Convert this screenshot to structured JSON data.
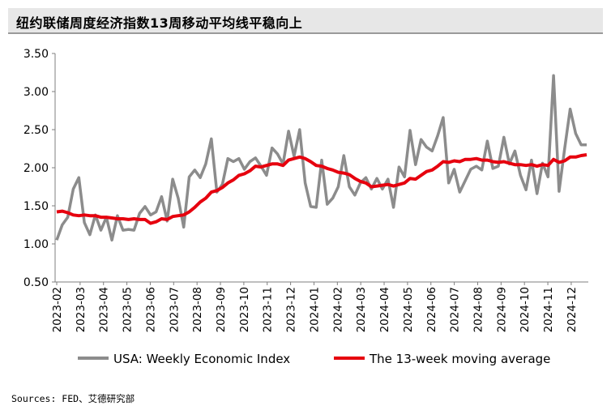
{
  "header": {
    "title": "纽约联储周度经济指数13周移动平均线平稳向上"
  },
  "footer": {
    "source": "Sources: FED、艾德研究部"
  },
  "colors": {
    "index_line": "#8c8c8c",
    "ma_line": "#e6000e",
    "title_bg": "#e7e7e7"
  },
  "chart_data": {
    "type": "line",
    "ylim": [
      0.5,
      3.5
    ],
    "yticks": [
      0.5,
      1.0,
      1.5,
      2.0,
      2.5,
      3.0,
      3.5
    ],
    "ytick_labels": [
      "0.50",
      "1.00",
      "1.50",
      "2.00",
      "2.50",
      "3.00",
      "3.50"
    ],
    "xtick_labels": [
      "2023-02",
      "2023-03",
      "2023-04",
      "2023-05",
      "2023-06",
      "2023-07",
      "2023-08",
      "2023-09",
      "2023-10",
      "2023-11",
      "2023-12",
      "2024-01",
      "2024-02",
      "2024-03",
      "2024-04",
      "2024-05",
      "2024-06",
      "2024-07",
      "2024-08",
      "2024-09",
      "2024-10",
      "2024-11",
      "2024-12"
    ],
    "legend_position": "bottom",
    "grid": false,
    "series": [
      {
        "name": "USA: Weekly Economic Index",
        "color": "#8c8c8c",
        "values": [
          1.05,
          1.25,
          1.35,
          1.72,
          1.87,
          1.28,
          1.12,
          1.38,
          1.18,
          1.35,
          1.05,
          1.37,
          1.18,
          1.19,
          1.18,
          1.4,
          1.49,
          1.38,
          1.42,
          1.62,
          1.3,
          1.85,
          1.6,
          1.22,
          1.88,
          1.97,
          1.87,
          2.05,
          2.38,
          1.68,
          1.78,
          2.12,
          2.08,
          2.12,
          1.98,
          2.08,
          2.13,
          2.02,
          1.9,
          2.26,
          2.18,
          2.05,
          2.48,
          2.15,
          2.5,
          1.8,
          1.49,
          1.48,
          2.1,
          1.52,
          1.6,
          1.75,
          2.16,
          1.75,
          1.64,
          1.8,
          1.87,
          1.72,
          1.86,
          1.72,
          1.85,
          1.48,
          2.01,
          1.88,
          2.49,
          2.04,
          2.37,
          2.27,
          2.22,
          2.42,
          2.66,
          1.8,
          1.98,
          1.68,
          1.83,
          1.98,
          2.02,
          1.97,
          2.35,
          1.99,
          2.02,
          2.4,
          2.05,
          2.22,
          1.9,
          1.71,
          2.1,
          1.66,
          2.06,
          1.88,
          3.21,
          1.69,
          2.25,
          2.77,
          2.45,
          2.3,
          2.3
        ],
        "ma_values": [
          1.42,
          1.43,
          1.41,
          1.38,
          1.37,
          1.38,
          1.37,
          1.37,
          1.35,
          1.35,
          1.34,
          1.33,
          1.33,
          1.32,
          1.33,
          1.32,
          1.32,
          1.27,
          1.29,
          1.33,
          1.32,
          1.36,
          1.37,
          1.38,
          1.42,
          1.48,
          1.55,
          1.6,
          1.68,
          1.7,
          1.74,
          1.8,
          1.84,
          1.9,
          1.92,
          1.96,
          2.02,
          2.01,
          2.03,
          2.05,
          2.05,
          2.03,
          2.1,
          2.12,
          2.14,
          2.12,
          2.08,
          2.03,
          2.02,
          1.99,
          1.97,
          1.94,
          1.93,
          1.91,
          1.86,
          1.82,
          1.8,
          1.75,
          1.76,
          1.77,
          1.78,
          1.76,
          1.78,
          1.8,
          1.86,
          1.85,
          1.9,
          1.95,
          1.97,
          2.02,
          2.08,
          2.07,
          2.09,
          2.08,
          2.11,
          2.11,
          2.12,
          2.1,
          2.1,
          2.08,
          2.07,
          2.08,
          2.06,
          2.04,
          2.04,
          2.03,
          2.04,
          2.02,
          2.04,
          2.03,
          2.11,
          2.07,
          2.09,
          2.14,
          2.14,
          2.16,
          2.17
        ]
      },
      {
        "name": "The 13-week moving average",
        "color": "#e6000e"
      }
    ]
  }
}
